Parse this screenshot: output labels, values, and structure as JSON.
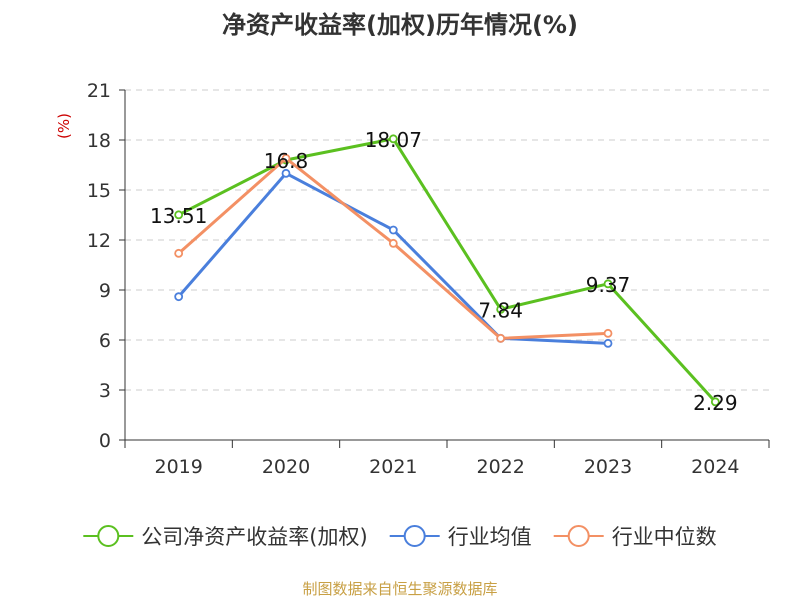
{
  "chart_data": {
    "type": "line",
    "title": "净资产收益率(加权)历年情况(%)",
    "ylabel": "(%)",
    "xlabel": "",
    "categories": [
      "2019",
      "2020",
      "2021",
      "2022",
      "2023",
      "2024"
    ],
    "ylim": [
      0,
      21
    ],
    "yticks": [
      0,
      3,
      6,
      9,
      12,
      15,
      18,
      21
    ],
    "grid": true,
    "legend_position": "bottom",
    "series": [
      {
        "name": "公司净资产收益率(加权)",
        "values": [
          13.51,
          16.8,
          18.07,
          7.84,
          9.37,
          2.29
        ],
        "labels": [
          "13.51",
          "16.8",
          "18.07",
          "7.84",
          "9.37",
          "2.29"
        ],
        "color": "#5bc020"
      },
      {
        "name": "行业均值",
        "values": [
          8.6,
          16.0,
          12.6,
          6.1,
          5.8,
          null
        ],
        "color": "#4a7fdc"
      },
      {
        "name": "行业中位数",
        "values": [
          11.2,
          16.9,
          11.8,
          6.1,
          6.4,
          null
        ],
        "color": "#f39064"
      }
    ]
  },
  "source": {
    "text": "制图数据来自恒生聚源数据库",
    "color": "#c8a045"
  },
  "colors": {
    "axis": "#333333",
    "grid": "#cccccc",
    "ylabel": "#cc0000"
  }
}
